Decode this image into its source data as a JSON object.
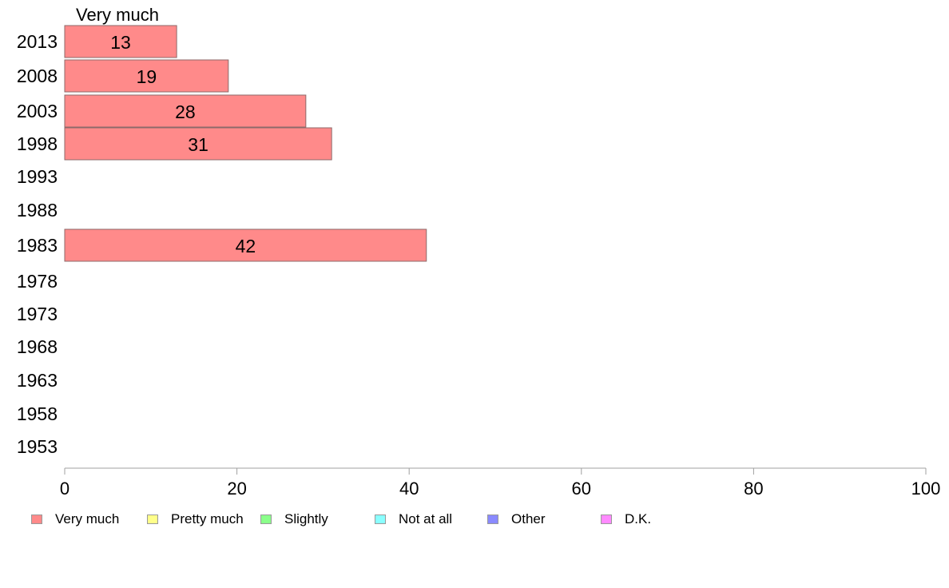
{
  "chart_data": {
    "type": "bar",
    "orientation": "horizontal",
    "title": "Very much",
    "categories": [
      "2013",
      "2008",
      "2003",
      "1998",
      "1993",
      "1988",
      "1983",
      "1978",
      "1973",
      "1968",
      "1963",
      "1958",
      "1953"
    ],
    "series": [
      {
        "name": "Very much",
        "color": "#ff8a8a",
        "values": [
          13,
          19,
          28,
          31,
          null,
          null,
          42,
          null,
          null,
          null,
          null,
          null,
          null
        ]
      }
    ],
    "xlim": [
      0,
      100
    ],
    "xticks": [
      0,
      20,
      40,
      60,
      80,
      100
    ],
    "grid": false,
    "legend_placement": "bottom",
    "legend": [
      {
        "label": "Very much",
        "color": "#ff8a8a"
      },
      {
        "label": "Pretty much",
        "color": "#ffff8a"
      },
      {
        "label": "Slightly",
        "color": "#8aff8a"
      },
      {
        "label": "Not at all",
        "color": "#8affff"
      },
      {
        "label": "Other",
        "color": "#8a8aff"
      },
      {
        "label": "D.K.",
        "color": "#ff8aff"
      }
    ]
  }
}
